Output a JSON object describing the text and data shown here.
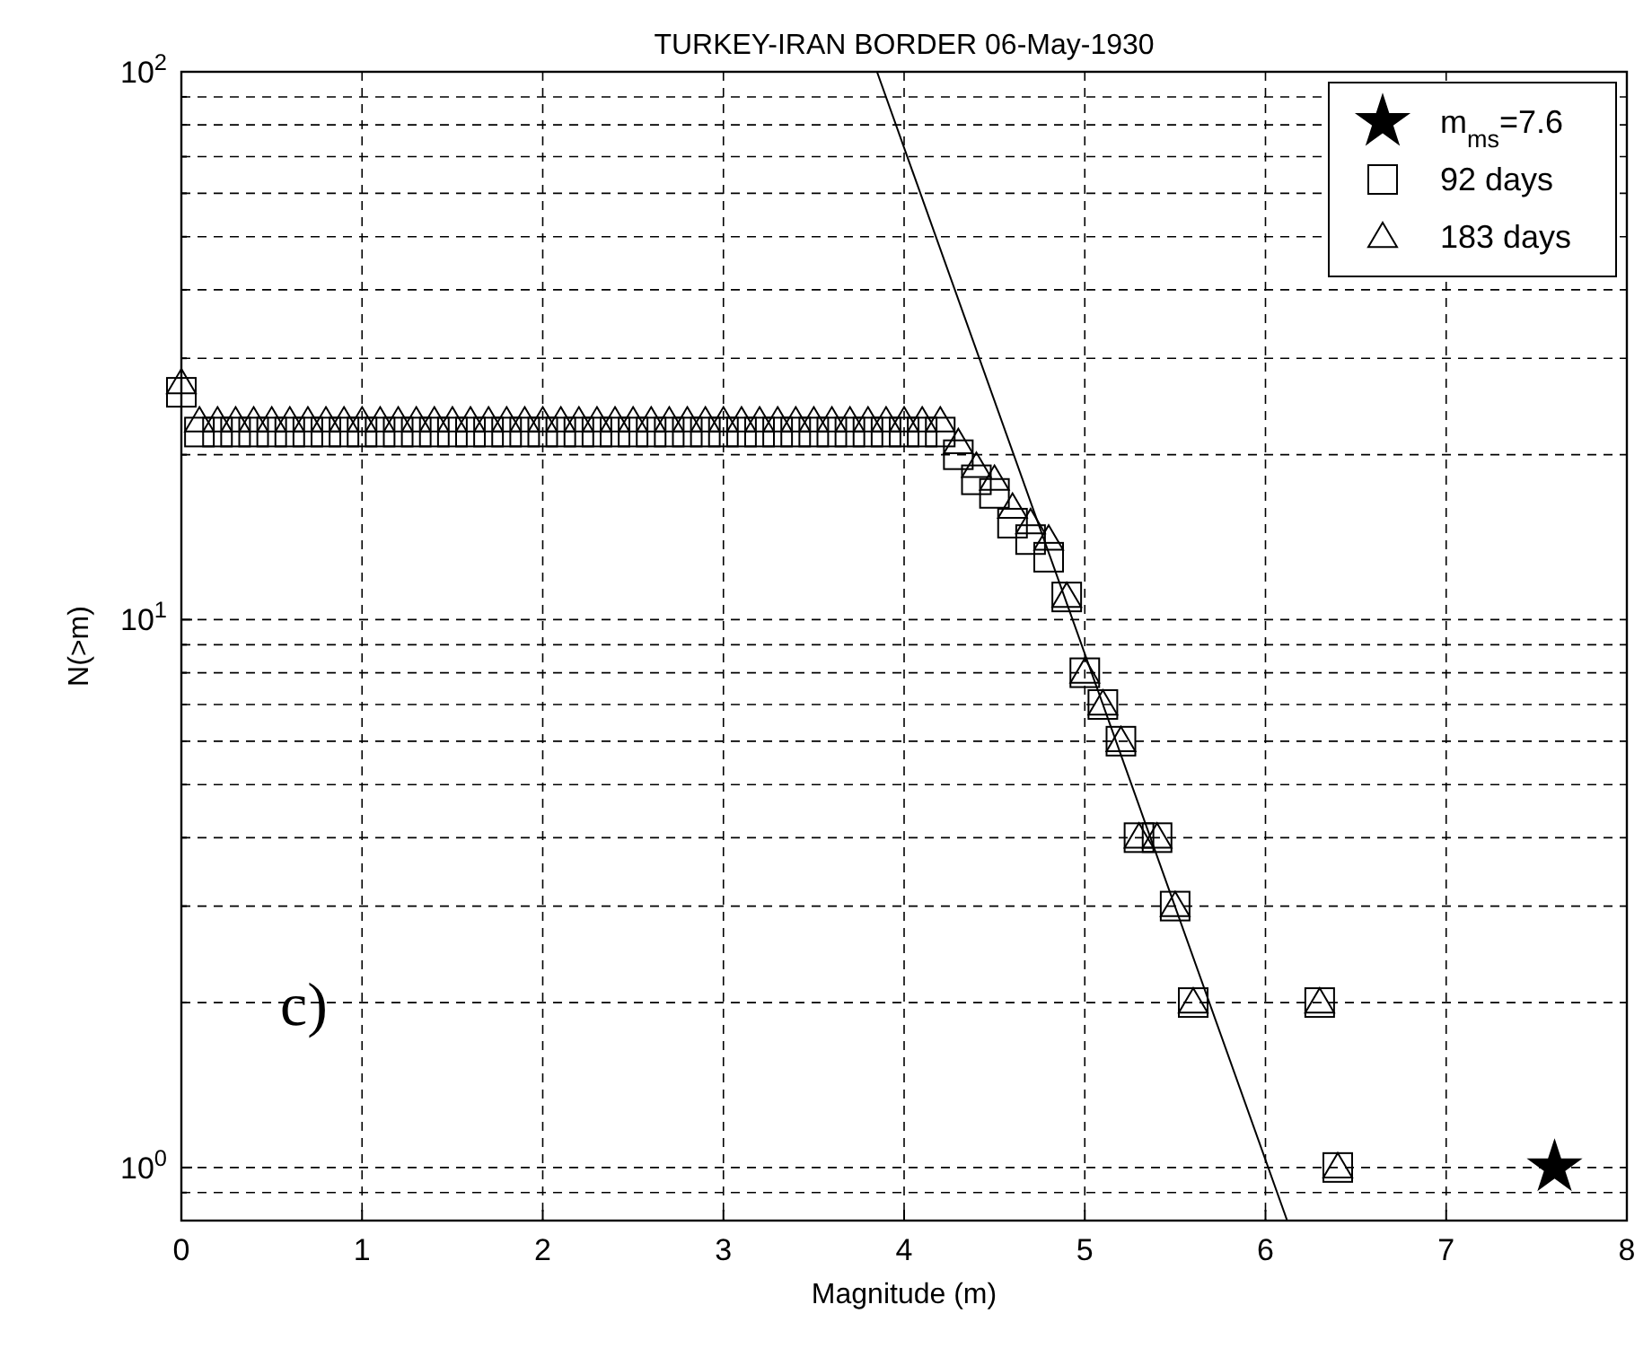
{
  "chart_data": {
    "type": "scatter",
    "title": "TURKEY-IRAN BORDER   06-May-1930",
    "xlabel": "Magnitude (m)",
    "ylabel": "N(>m)",
    "log": "y",
    "grid": true,
    "legend": "top right",
    "xlim": [
      0,
      8
    ],
    "xticks": [
      0,
      1,
      2,
      3,
      4,
      5,
      6,
      7,
      8
    ],
    "ylim": [
      0.8,
      100
    ],
    "yticks": [
      {
        "value": 0.9,
        "label": null
      },
      {
        "value": 1,
        "label": "10$^{0}$"
      },
      {
        "value": 2,
        "label": null
      },
      {
        "value": 3,
        "label": null
      },
      {
        "value": 4,
        "label": null
      },
      {
        "value": 5,
        "label": null
      },
      {
        "value": 6,
        "label": null
      },
      {
        "value": 7,
        "label": null
      },
      {
        "value": 8,
        "label": null
      },
      {
        "value": 9,
        "label": null
      },
      {
        "value": 10,
        "label": "10$^{1}$"
      },
      {
        "value": 20,
        "label": null
      },
      {
        "value": 30,
        "label": null
      },
      {
        "value": 40,
        "label": null
      },
      {
        "value": 50,
        "label": null
      },
      {
        "value": 60,
        "label": null
      },
      {
        "value": 70,
        "label": null
      },
      {
        "value": 80,
        "label": null
      },
      {
        "value": 90,
        "label": null
      },
      {
        "value": 100,
        "label": "10$^{2}$"
      }
    ],
    "annotations": [
      "c)"
    ],
    "series": [
      {
        "name": "m$_{ms}$=7.6",
        "marker": "star",
        "color": "#000000",
        "x": [
          7.6
        ],
        "values": [
          1
        ]
      },
      {
        "name": "92 days",
        "marker": "square",
        "color": "#000000",
        "x": [
          0,
          0.1,
          0.2,
          0.3,
          0.4,
          0.5,
          0.6,
          0.7,
          0.8,
          0.9,
          1,
          1.1,
          1.2,
          1.3,
          1.4,
          1.5,
          1.6,
          1.7,
          1.8,
          1.9,
          2,
          2.1,
          2.2,
          2.3,
          2.4,
          2.5,
          2.6,
          2.7,
          2.8,
          2.9,
          3,
          3.1,
          3.2,
          3.3,
          3.4,
          3.5,
          3.6,
          3.7,
          3.8,
          3.9,
          4,
          4.1,
          4.2,
          4.3,
          4.4,
          4.5,
          4.6,
          4.7,
          4.8,
          4.9,
          5,
          5.1,
          5.2,
          5.3,
          5.4,
          5.5,
          5.6,
          6.3,
          6.4
        ],
        "values": [
          26,
          22,
          22,
          22,
          22,
          22,
          22,
          22,
          22,
          22,
          22,
          22,
          22,
          22,
          22,
          22,
          22,
          22,
          22,
          22,
          22,
          22,
          22,
          22,
          22,
          22,
          22,
          22,
          22,
          22,
          22,
          22,
          22,
          22,
          22,
          22,
          22,
          22,
          22,
          22,
          22,
          22,
          22,
          20,
          18,
          17,
          15,
          14,
          13,
          11,
          8,
          7,
          6,
          4,
          4,
          3,
          2,
          2,
          1
        ]
      },
      {
        "name": "183 days",
        "marker": "triangle",
        "color": "#000000",
        "x": [
          0,
          0.1,
          0.2,
          0.3,
          0.4,
          0.5,
          0.6,
          0.7,
          0.8,
          0.9,
          1,
          1.1,
          1.2,
          1.3,
          1.4,
          1.5,
          1.6,
          1.7,
          1.8,
          1.9,
          2,
          2.1,
          2.2,
          2.3,
          2.4,
          2.5,
          2.6,
          2.7,
          2.8,
          2.9,
          3,
          3.1,
          3.2,
          3.3,
          3.4,
          3.5,
          3.6,
          3.7,
          3.8,
          3.9,
          4,
          4.1,
          4.2,
          4.3,
          4.4,
          4.5,
          4.6,
          4.7,
          4.8,
          4.9,
          5,
          5.1,
          5.2,
          5.3,
          5.4,
          5.5,
          5.6,
          6.3,
          6.4
        ],
        "values": [
          27,
          23,
          23,
          23,
          23,
          23,
          23,
          23,
          23,
          23,
          23,
          23,
          23,
          23,
          23,
          23,
          23,
          23,
          23,
          23,
          23,
          23,
          23,
          23,
          23,
          23,
          23,
          23,
          23,
          23,
          23,
          23,
          23,
          23,
          23,
          23,
          23,
          23,
          23,
          23,
          23,
          23,
          23,
          21,
          19,
          18,
          16,
          15,
          14,
          11,
          8,
          7,
          6,
          4,
          4,
          3,
          2,
          2,
          1
        ]
      },
      {
        "type": "line",
        "marker": "none",
        "line_style": "solid",
        "color": "#000000",
        "x": [
          3.85,
          6.12
        ],
        "values": [
          100,
          0.8
        ]
      }
    ]
  }
}
